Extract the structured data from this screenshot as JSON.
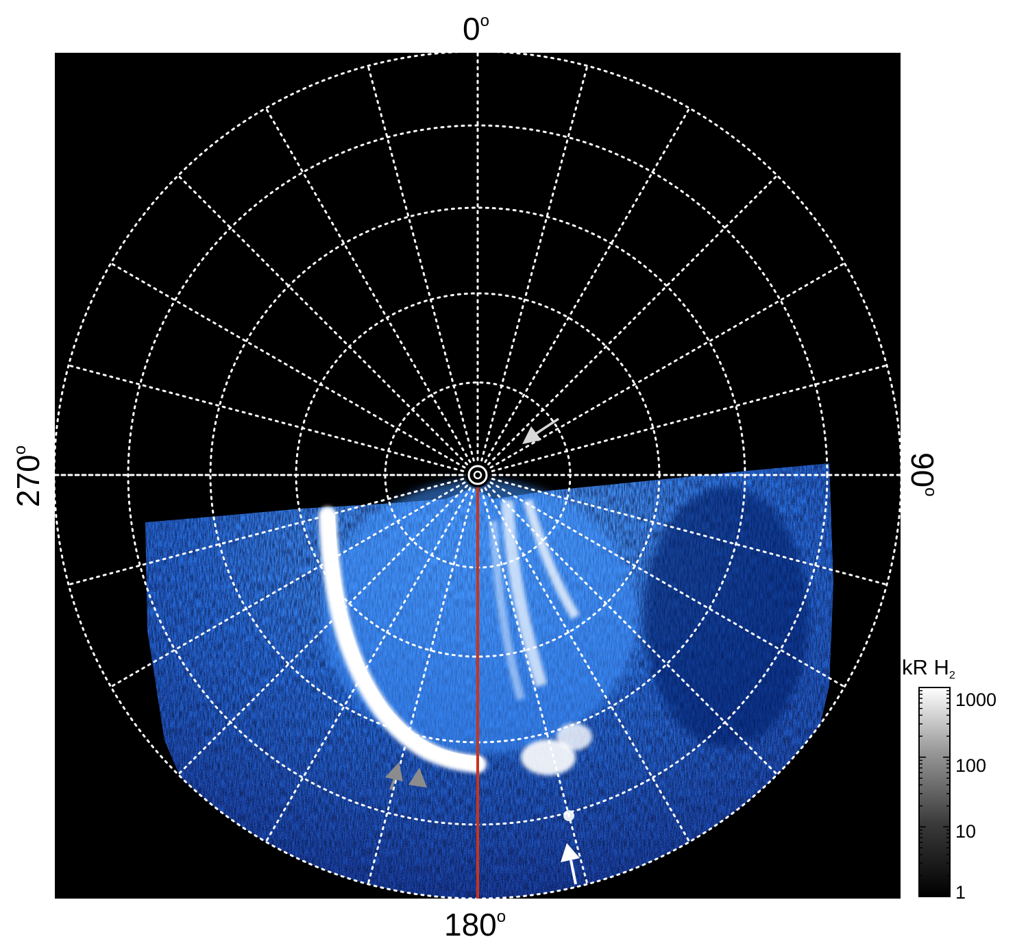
{
  "azimuth_labels": {
    "top": "0",
    "right": "90",
    "bottom": "180",
    "left": "270",
    "degree_symbol": "o"
  },
  "colorbar": {
    "title": "kR H",
    "title_subscript": "2",
    "ticks": [
      "1000",
      "100",
      "10",
      "1"
    ]
  },
  "colors": {
    "background": "#000000",
    "grid": "#ffffff",
    "meridian_line": "#c8341c",
    "aurora_dark": "#0a2a8c",
    "aurora_mid": "#2f7fe0",
    "aurora_bright": "#ffffff",
    "arrow_white": "#ffffff",
    "arrow_gray": "#8c8c8c",
    "arrow_light": "#d8d8d8"
  }
}
